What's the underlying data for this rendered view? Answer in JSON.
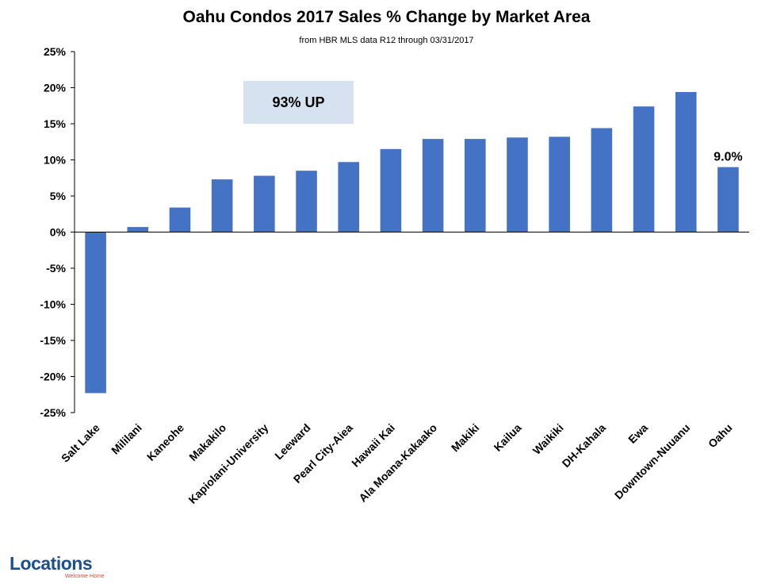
{
  "chart_data": {
    "type": "bar",
    "title": "Oahu Condos 2017 Sales % Change by Market Area",
    "subtitle": "from HBR MLS data R12 through 03/31/2017",
    "categories": [
      "Salt Lake",
      "Mililani",
      "Kaneohe",
      "Makakilo",
      "Kapiolani-University",
      "Leeward",
      "Pearl City-Aiea",
      "Hawaii Kai",
      "Ala Moana-Kakaako",
      "Makiki",
      "Kailua",
      "Waikiki",
      "DH-Kahala",
      "Ewa",
      "Downtown-Nuuanu",
      "Oahu"
    ],
    "values": [
      -22.3,
      0.7,
      3.4,
      7.3,
      7.8,
      8.5,
      9.7,
      11.5,
      12.9,
      12.9,
      13.1,
      13.2,
      14.4,
      17.4,
      19.4,
      9.0
    ],
    "ylim": [
      -25,
      25
    ],
    "yticks": [
      "-25%",
      "-20%",
      "-15%",
      "-10%",
      "-5%",
      "0%",
      "5%",
      "10%",
      "15%",
      "20%",
      "25%"
    ],
    "grid": false,
    "bar_color": "#4472c4",
    "data_labels": [
      {
        "category": "Oahu",
        "text": "9.0%"
      }
    ],
    "annotation": "93% UP"
  },
  "logo": {
    "name": "Locations",
    "tagline": "Welcome Home"
  }
}
